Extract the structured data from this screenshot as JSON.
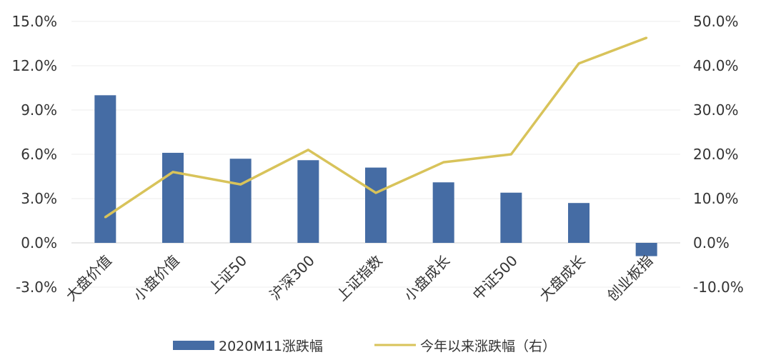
{
  "chart_data": {
    "type": "bar+line",
    "categories": [
      "大盘价值",
      "小盘价值",
      "上证50",
      "沪深300",
      "上证指数",
      "小盘成长",
      "中证500",
      "大盘成长",
      "创业板指"
    ],
    "series": [
      {
        "name": "2020M11涨跌幅",
        "type": "bar",
        "axis": "left",
        "color": "#456CA4",
        "values": [
          10.0,
          6.1,
          5.7,
          5.6,
          5.1,
          4.1,
          3.4,
          2.7,
          -0.9
        ]
      },
      {
        "name": "今年以来涨跌幅（右）",
        "type": "line",
        "axis": "right",
        "color": "#D8C35A",
        "values": [
          5.8,
          16.0,
          13.2,
          21.0,
          11.3,
          18.2,
          20.0,
          40.5,
          46.3
        ]
      }
    ],
    "y_left": {
      "min": -3.0,
      "max": 15.0,
      "step": 3.0,
      "ticks": [
        "-3.0%",
        "0.0%",
        "3.0%",
        "6.0%",
        "9.0%",
        "12.0%",
        "15.0%"
      ]
    },
    "y_right": {
      "min": -10.0,
      "max": 50.0,
      "step": 10.0,
      "ticks": [
        "-10.0%",
        "0.0%",
        "10.0%",
        "20.0%",
        "30.0%",
        "40.0%",
        "50.0%"
      ]
    },
    "grid": true,
    "legend": "bottom-center"
  }
}
